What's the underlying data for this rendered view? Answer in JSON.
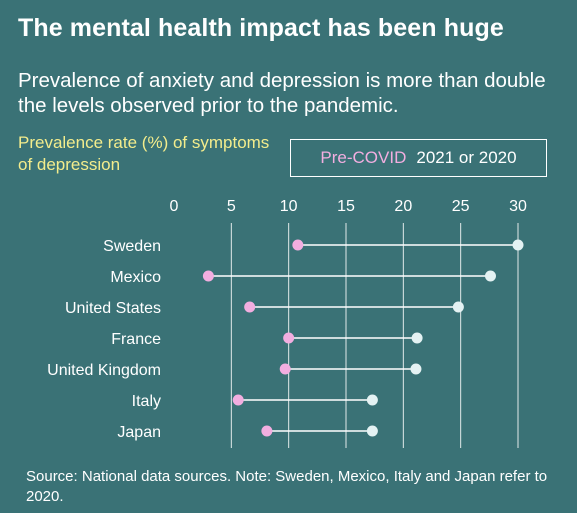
{
  "title": "The mental health impact has been huge",
  "subtitle": "Prevalence of anxiety and depression is more than double the levels observed prior to the pandemic.",
  "source": "Source: National data sources. Note: Sweden, Mexico, Italy and Japan refer to 2020.",
  "colors": {
    "background": "#3a7276",
    "pre": "#f2aee0",
    "post": "#e4f2f3",
    "ylabel": "#f3ec8c"
  },
  "chart_data": {
    "type": "dumbbell",
    "ylabel": "Prevalence rate (%) of symptoms of depression",
    "xlim": [
      0,
      30
    ],
    "xticks": [
      0,
      5,
      10,
      15,
      20,
      25,
      30
    ],
    "grid": true,
    "legend_position": "top-right",
    "legend": {
      "pre": "Pre-COVID",
      "post": "2021 or 2020"
    },
    "categories": [
      "Sweden",
      "Mexico",
      "United States",
      "France",
      "United Kingdom",
      "Italy",
      "Japan"
    ],
    "series": [
      {
        "name": "Pre-COVID",
        "values": [
          10.8,
          3.0,
          6.6,
          10.0,
          9.7,
          5.6,
          8.1
        ]
      },
      {
        "name": "2021 or 2020",
        "values": [
          30.0,
          27.6,
          24.8,
          21.2,
          21.1,
          17.3,
          17.3
        ]
      }
    ]
  }
}
